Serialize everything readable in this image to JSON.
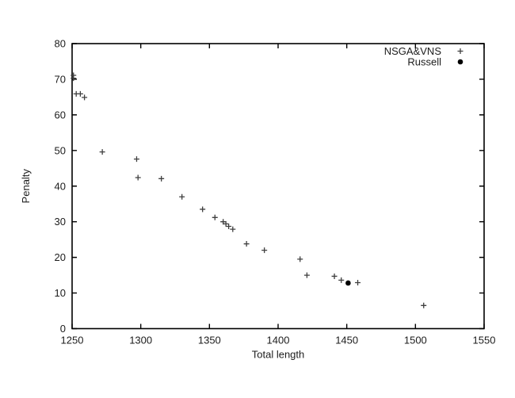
{
  "chart_data": {
    "type": "scatter",
    "title": "",
    "xlabel": "Total length",
    "ylabel": "Penalty",
    "xlim": [
      1250,
      1550
    ],
    "ylim": [
      0,
      80
    ],
    "xticks": [
      1250,
      1300,
      1350,
      1400,
      1450,
      1500,
      1550
    ],
    "yticks": [
      0,
      10,
      20,
      30,
      40,
      50,
      60,
      70,
      80
    ],
    "grid": false,
    "legend_position": "top-right-inside",
    "colors": {
      "axis": "#000000",
      "nsga_marker": "#3f3f3f",
      "russell_marker": "#000000"
    },
    "series": [
      {
        "name": "NSGA&VNS",
        "marker": "plus",
        "color": "#3f3f3f",
        "points": [
          [
            1251,
            71.1
          ],
          [
            1251,
            70.3
          ],
          [
            1253,
            65.9
          ],
          [
            1256,
            65.9
          ],
          [
            1259,
            64.9
          ],
          [
            1272,
            49.6
          ],
          [
            1297,
            47.6
          ],
          [
            1298,
            42.4
          ],
          [
            1315,
            42.1
          ],
          [
            1330,
            37.0
          ],
          [
            1345,
            33.5
          ],
          [
            1354,
            31.2
          ],
          [
            1360,
            30.0
          ],
          [
            1362,
            29.4
          ],
          [
            1364,
            28.7
          ],
          [
            1367,
            27.9
          ],
          [
            1377,
            23.8
          ],
          [
            1390,
            22.0
          ],
          [
            1416,
            19.5
          ],
          [
            1421,
            15.0
          ],
          [
            1441,
            14.7
          ],
          [
            1446,
            13.6
          ],
          [
            1458,
            12.9
          ],
          [
            1506,
            6.5
          ]
        ]
      },
      {
        "name": "Russell",
        "marker": "dot",
        "color": "#000000",
        "points": [
          [
            1451,
            12.8
          ]
        ]
      }
    ]
  }
}
